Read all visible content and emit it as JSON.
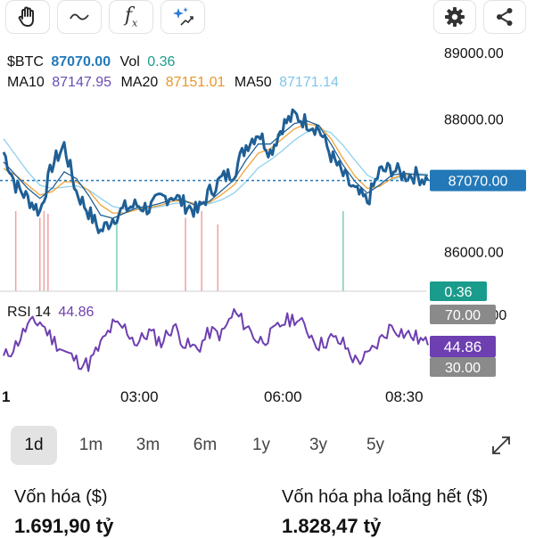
{
  "toolbar": {
    "left_tools": [
      "hand-icon",
      "curve-icon",
      "function-icon",
      "sparkle-icon"
    ],
    "right_tools": [
      "gear-icon",
      "share-icon"
    ],
    "function_symbol": "f",
    "function_sub": "x"
  },
  "legend": {
    "symbol": "$BTC",
    "price": "87070.00",
    "vol_label": "Vol",
    "vol_value": "0.36",
    "ma10_label": "MA10",
    "ma10_value": "87147.95",
    "ma20_label": "MA20",
    "ma20_value": "87151.01",
    "ma50_label": "MA50",
    "ma50_value": "87171.14"
  },
  "badges": {
    "price": "87070.00",
    "volume": "0.36",
    "rsi": "44.86",
    "rsi_upper": "70.00",
    "rsi_lower": "30.00",
    "rsi_upper_hidden_tail": ".00"
  },
  "rsi_label": {
    "name": "RSI 14",
    "value": "44.86"
  },
  "colors": {
    "price": "#1f5f95",
    "ma10": "#1f5f95",
    "ma20": "#f0a23a",
    "ma50": "#8fd0ee",
    "rsi": "#6e3fb0",
    "badge_price": "#2379b8",
    "badge_vol": "#1a9c8c",
    "badge_rsi": "#6e3fb0",
    "badge_level": "#8a8a8a",
    "vol_up": "#7fcbb8",
    "vol_down": "#f2a0a0"
  },
  "ranges": {
    "items": [
      "1d",
      "1m",
      "3m",
      "6m",
      "1y",
      "3y",
      "5y"
    ],
    "active": "1d"
  },
  "metrics": [
    {
      "label": "Vốn hóa ($)",
      "value": "1.691,90 tỷ"
    },
    {
      "label": "Vốn hóa pha loãng hết ($)",
      "value": "1.828,47 tỷ"
    }
  ],
  "chart_data": [
    {
      "type": "line",
      "title": "$BTC",
      "y_ticks": [
        89000,
        88000,
        86000
      ],
      "y_tick_labels": [
        "89000.00",
        "88000.00",
        "86000.00"
      ],
      "ylim": [
        85400,
        89200
      ],
      "x_ticks": [
        "1",
        "03:00",
        "06:00",
        "08:30"
      ],
      "current_price": 87070,
      "grid": false,
      "series": [
        {
          "name": "$BTC",
          "x": [
            "00:00",
            "00:15",
            "00:30",
            "00:45",
            "01:00",
            "01:15",
            "01:30",
            "01:45",
            "02:00",
            "02:15",
            "02:30",
            "02:45",
            "03:00",
            "03:15",
            "03:30",
            "03:45",
            "04:00",
            "04:15",
            "04:30",
            "04:45",
            "05:00",
            "05:15",
            "05:30",
            "05:45",
            "06:00",
            "06:15",
            "06:30",
            "06:45",
            "07:00",
            "07:15",
            "07:30",
            "07:45",
            "08:00",
            "08:15",
            "08:30",
            "08:45"
          ],
          "values": [
            87500,
            87000,
            86800,
            86600,
            87300,
            87600,
            86900,
            86600,
            86300,
            86500,
            86650,
            86700,
            86650,
            86800,
            86850,
            86700,
            86600,
            86900,
            87100,
            87200,
            87600,
            87800,
            87500,
            87900,
            88050,
            87950,
            87850,
            87450,
            87150,
            86900,
            86750,
            87200,
            87250,
            87150,
            87150,
            87070
          ]
        },
        {
          "name": "MA10",
          "values": [
            87350,
            87150,
            86950,
            86800,
            86950,
            87200,
            87100,
            86850,
            86550,
            86500,
            86580,
            86660,
            86680,
            86730,
            86790,
            86760,
            86680,
            86760,
            86920,
            87080,
            87380,
            87620,
            87620,
            87780,
            87930,
            87970,
            87900,
            87620,
            87300,
            87050,
            86880,
            87000,
            87150,
            87180,
            87160,
            87148
          ]
        },
        {
          "name": "MA20",
          "values": [
            87250,
            87150,
            87000,
            86850,
            86900,
            87050,
            87050,
            86920,
            86700,
            86580,
            86580,
            86630,
            86660,
            86700,
            86760,
            86760,
            86710,
            86740,
            86860,
            87000,
            87250,
            87480,
            87550,
            87700,
            87850,
            87920,
            87900,
            87700,
            87400,
            87130,
            86950,
            86980,
            87100,
            87160,
            87160,
            87151
          ]
        },
        {
          "name": "MA50",
          "values": [
            87700,
            87450,
            87200,
            87000,
            86950,
            86970,
            86990,
            86930,
            86800,
            86680,
            86640,
            86640,
            86650,
            86680,
            86720,
            86740,
            86720,
            86720,
            86780,
            86880,
            87050,
            87260,
            87380,
            87520,
            87680,
            87800,
            87850,
            87790,
            87600,
            87370,
            87150,
            87060,
            87080,
            87140,
            87170,
            87171
          ]
        }
      ]
    },
    {
      "type": "bar",
      "title": "Vol",
      "latest_value": 0.36,
      "x": [
        "00:15",
        "00:45",
        "00:50",
        "00:55",
        "02:20",
        "03:45",
        "04:05",
        "04:25",
        "07:00"
      ],
      "values": [
        0.6,
        0.55,
        0.6,
        0.58,
        0.5,
        0.55,
        0.6,
        0.5,
        0.6
      ],
      "colors": [
        "down",
        "down",
        "down",
        "down",
        "up",
        "down",
        "down",
        "down",
        "up"
      ]
    },
    {
      "type": "line",
      "title": "RSI 14",
      "ylim": [
        20,
        80
      ],
      "levels": [
        70,
        30
      ],
      "series": [
        {
          "name": "RSI 14",
          "values": [
            35,
            45,
            60,
            63,
            50,
            40,
            33,
            30,
            45,
            60,
            58,
            46,
            55,
            47,
            60,
            45,
            42,
            55,
            53,
            70,
            60,
            48,
            52,
            62,
            66,
            57,
            45,
            50,
            46,
            33,
            36,
            48,
            60,
            54,
            51,
            44.86
          ]
        }
      ]
    }
  ]
}
